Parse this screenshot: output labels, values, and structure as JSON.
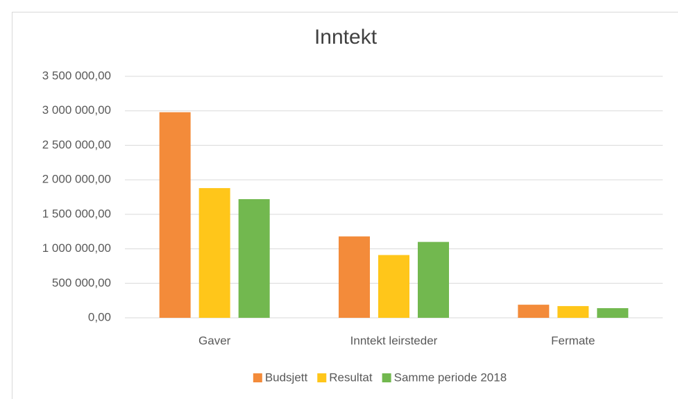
{
  "chart_data": {
    "type": "bar",
    "title": "Inntekt",
    "categories": [
      "Gaver",
      "Inntekt leirsteder",
      "Fermate"
    ],
    "series": [
      {
        "name": "Budsjett",
        "color": "#f38b3a",
        "values": [
          2980000,
          1180000,
          190000
        ]
      },
      {
        "name": "Resultat",
        "color": "#ffc61a",
        "values": [
          1880000,
          910000,
          170000
        ]
      },
      {
        "name": "Samme periode 2018",
        "color": "#72b84f",
        "values": [
          1720000,
          1100000,
          140000
        ]
      }
    ],
    "ylim": [
      0,
      3500000
    ],
    "yticks": [
      {
        "value": 0,
        "label": "0,00"
      },
      {
        "value": 500000,
        "label": "500 000,00"
      },
      {
        "value": 1000000,
        "label": "1 000 000,00"
      },
      {
        "value": 1500000,
        "label": "1 500 000,00"
      },
      {
        "value": 2000000,
        "label": "2 000 000,00"
      },
      {
        "value": 2500000,
        "label": "2 500 000,00"
      },
      {
        "value": 3000000,
        "label": "3 000 000,00"
      },
      {
        "value": 3500000,
        "label": "3 500 000,00"
      }
    ],
    "grid": true,
    "legend": "bottom"
  }
}
